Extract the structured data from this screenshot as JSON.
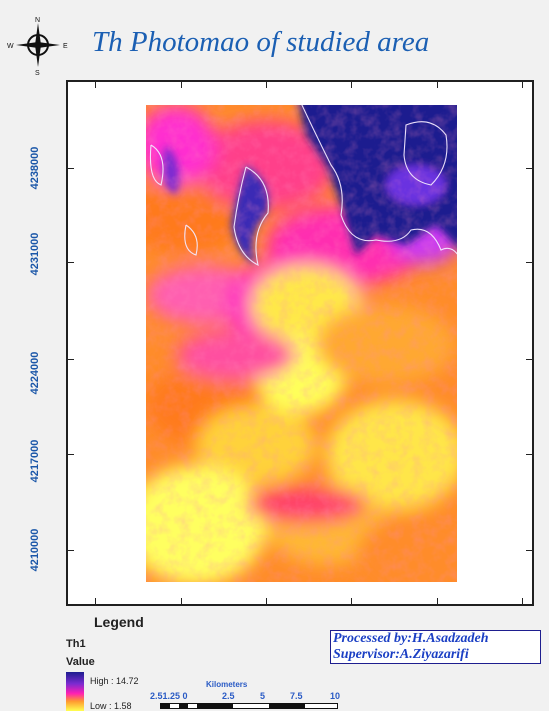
{
  "title": "Th Photomao of studied area",
  "compass": {
    "n": "N",
    "s": "S",
    "e": "E",
    "w": "W"
  },
  "axis": {
    "y_ticks": [
      "4238000",
      "4231000",
      "4224000",
      "4217000",
      "4210000"
    ]
  },
  "legend": {
    "heading": "Legend",
    "layer": "Th1",
    "value_label": "Value",
    "high": "High : 14.72",
    "low": "Low : 1.58"
  },
  "scale": {
    "units": "Kilometers",
    "labels": [
      "2.51.25 0",
      "2.5",
      "5",
      "7.5",
      "10"
    ]
  },
  "credits": {
    "processed": "Processed by:H.Asadzadeh",
    "supervisor": "Supervisor:A.Ziyazarifi"
  },
  "colors": {
    "high": "#1d1d8f",
    "mid_high": "#ff1fb4",
    "mid_low": "#ff9a30",
    "low": "#ffff50",
    "title": "#1b5fb3"
  }
}
